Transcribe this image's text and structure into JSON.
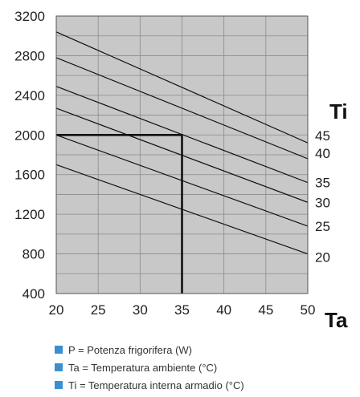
{
  "chart_data": {
    "type": "line",
    "xlabel": "Ta",
    "ylabel": "",
    "series_label_title": "Ti",
    "xlim": [
      20,
      50
    ],
    "ylim": [
      400,
      3200
    ],
    "x_ticks": [
      "20",
      "25",
      "30",
      "35",
      "40",
      "45",
      "50"
    ],
    "y_ticks": [
      "400",
      "800",
      "1200",
      "1600",
      "2000",
      "2400",
      "2800",
      "3200"
    ],
    "grid": true,
    "series": [
      {
        "name": "45",
        "x": [
          20,
          50
        ],
        "y": [
          3040,
          1920
        ]
      },
      {
        "name": "40",
        "x": [
          20,
          50
        ],
        "y": [
          2780,
          1760
        ]
      },
      {
        "name": "35",
        "x": [
          20,
          50
        ],
        "y": [
          2490,
          1520
        ]
      },
      {
        "name": "30",
        "x": [
          20,
          50
        ],
        "y": [
          2270,
          1320
        ]
      },
      {
        "name": "25",
        "x": [
          20,
          50
        ],
        "y": [
          2000,
          1080
        ]
      },
      {
        "name": "20",
        "x": [
          20,
          50
        ],
        "y": [
          1700,
          800
        ]
      }
    ],
    "guide": {
      "x": [
        20,
        35,
        35
      ],
      "y": [
        2000,
        2000,
        400
      ]
    }
  },
  "legend": {
    "items": [
      "P = Potenza frigorifera (W)",
      "Ta = Temperatura ambiente (°C)",
      "Ti = Temperatura interna armadio (°C)"
    ]
  },
  "colors": {
    "plot_bg": "#c8c8c8",
    "grid": "#8a8a8a",
    "line": "#111111",
    "legend_swatch": "#3a8fd0"
  }
}
